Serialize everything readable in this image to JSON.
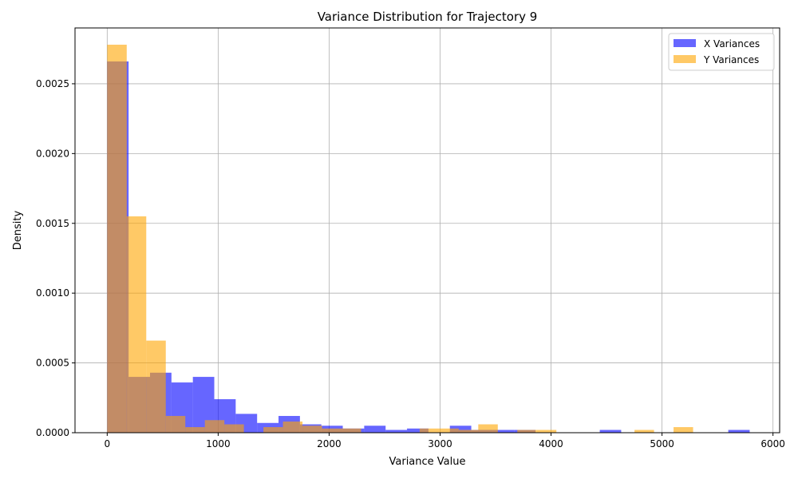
{
  "chart_data": {
    "type": "histogram",
    "title": "Variance Distribution for Trajectory 9",
    "xlabel": "Variance Value",
    "ylabel": "Density",
    "xlim": [
      -290,
      6060
    ],
    "ylim": [
      0,
      0.0029
    ],
    "xticks": [
      0,
      1000,
      2000,
      3000,
      4000,
      5000,
      6000
    ],
    "yticks": [
      0,
      0.0005,
      0.001,
      0.0015,
      0.002,
      0.0025
    ],
    "ytick_labels": [
      "0.0000",
      "0.0005",
      "0.0010",
      "0.0015",
      "0.0020",
      "0.0025"
    ],
    "grid": true,
    "legend_position": "top-right",
    "series": [
      {
        "name": "X Variances",
        "color": "#0000ff",
        "opacity": 0.6,
        "bin_start": 0,
        "bin_width": 193,
        "values": [
          0.00266,
          0.0004,
          0.00043,
          0.00036,
          0.0004,
          0.00024,
          0.000135,
          7e-05,
          0.00012,
          6e-05,
          5e-05,
          3e-05,
          5e-05,
          2e-05,
          3e-05,
          0.0,
          5e-05,
          2e-05,
          2e-05,
          2e-05,
          0.0,
          0.0,
          0.0,
          2e-05,
          0.0,
          0.0,
          0.0,
          0.0,
          0.0,
          2e-05
        ]
      },
      {
        "name": "Y Variances",
        "color": "#ffa500",
        "opacity": 0.6,
        "bin_start": 0,
        "bin_width": 176,
        "values": [
          0.00278,
          0.00155,
          0.00066,
          0.00012,
          4e-05,
          9e-05,
          6e-05,
          0.0,
          4e-05,
          8e-05,
          5e-05,
          3e-05,
          3e-05,
          0.0,
          0.0,
          0.0,
          3e-05,
          3e-05,
          2e-05,
          6e-05,
          0.0,
          2e-05,
          2e-05,
          0.0,
          0.0,
          0.0,
          0.0,
          2e-05,
          0.0,
          4e-05
        ]
      }
    ]
  }
}
